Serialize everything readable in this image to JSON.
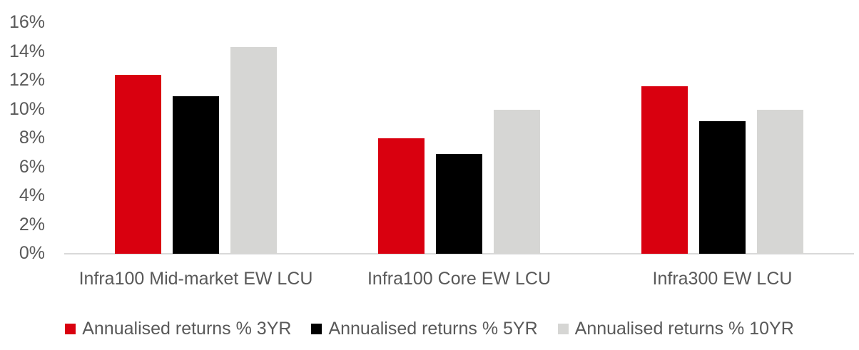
{
  "chart_data": {
    "type": "bar",
    "title": "",
    "xlabel": "",
    "ylabel": "",
    "ylim": [
      0,
      16
    ],
    "ytick_step": 2,
    "ytick_labels": [
      "0%",
      "2%",
      "4%",
      "6%",
      "8%",
      "10%",
      "12%",
      "14%",
      "16%"
    ],
    "grid": false,
    "legend_position": "bottom",
    "categories": [
      "Infra100 Mid-market EW LCU",
      "Infra100 Core EW LCU",
      "Infra300 EW LCU"
    ],
    "series": [
      {
        "name": "Annualised returns % 3YR",
        "color": "#d9000f",
        "values": [
          12.4,
          8.0,
          11.6
        ]
      },
      {
        "name": "Annualised returns % 5YR",
        "color": "#000000",
        "values": [
          10.9,
          6.9,
          9.2
        ]
      },
      {
        "name": "Annualised returns % 10YR",
        "color": "#d6d6d4",
        "values": [
          14.3,
          10.0,
          10.0
        ]
      }
    ]
  },
  "colors": {
    "axis_line": "#d9d9d9",
    "tick_text": "#595959",
    "background": "#ffffff"
  }
}
